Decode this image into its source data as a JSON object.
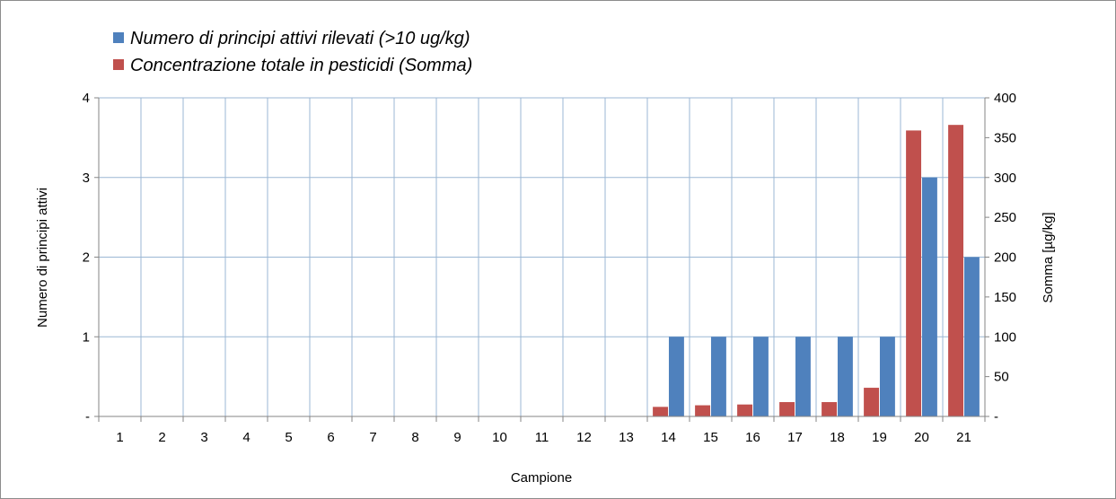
{
  "chart_data": {
    "type": "bar",
    "categories": [
      "1",
      "2",
      "3",
      "4",
      "5",
      "6",
      "7",
      "8",
      "9",
      "10",
      "11",
      "12",
      "13",
      "14",
      "15",
      "16",
      "17",
      "18",
      "19",
      "20",
      "21"
    ],
    "series": [
      {
        "name": "Concentrazione totale in pesticidi (Somma)",
        "axis": "right",
        "color": "#c0504d",
        "values": [
          0,
          0,
          0,
          0,
          0,
          0,
          0,
          0,
          0,
          0,
          0,
          0,
          0,
          12,
          14,
          15,
          18,
          18,
          36,
          359,
          366
        ]
      },
      {
        "name": "Numero di principi attivi rilevati (>10 ug/kg)",
        "axis": "left",
        "color": "#4f81bd",
        "values": [
          0,
          0,
          0,
          0,
          0,
          0,
          0,
          0,
          0,
          0,
          0,
          0,
          0,
          1,
          1,
          1,
          1,
          1,
          1,
          3,
          2
        ]
      }
    ],
    "legend": {
      "placement": "top-left",
      "items": [
        {
          "label": "Numero di principi attivi rilevati (>10 ug/kg)",
          "color": "#4f81bd"
        },
        {
          "label": "Concentrazione totale in pesticidi (Somma)",
          "color": "#c0504d"
        }
      ]
    },
    "xlabel": "Campione",
    "ylabel": "Numero di principi attivi",
    "y2label": "Somma [µg/kg]",
    "ylim": [
      0,
      4
    ],
    "y2lim": [
      0,
      400
    ],
    "yticks": [
      "-",
      "1",
      "2",
      "3",
      "4"
    ],
    "y2ticks": [
      "-",
      "50",
      "100",
      "150",
      "200",
      "250",
      "300",
      "350",
      "400"
    ],
    "grid": true
  }
}
